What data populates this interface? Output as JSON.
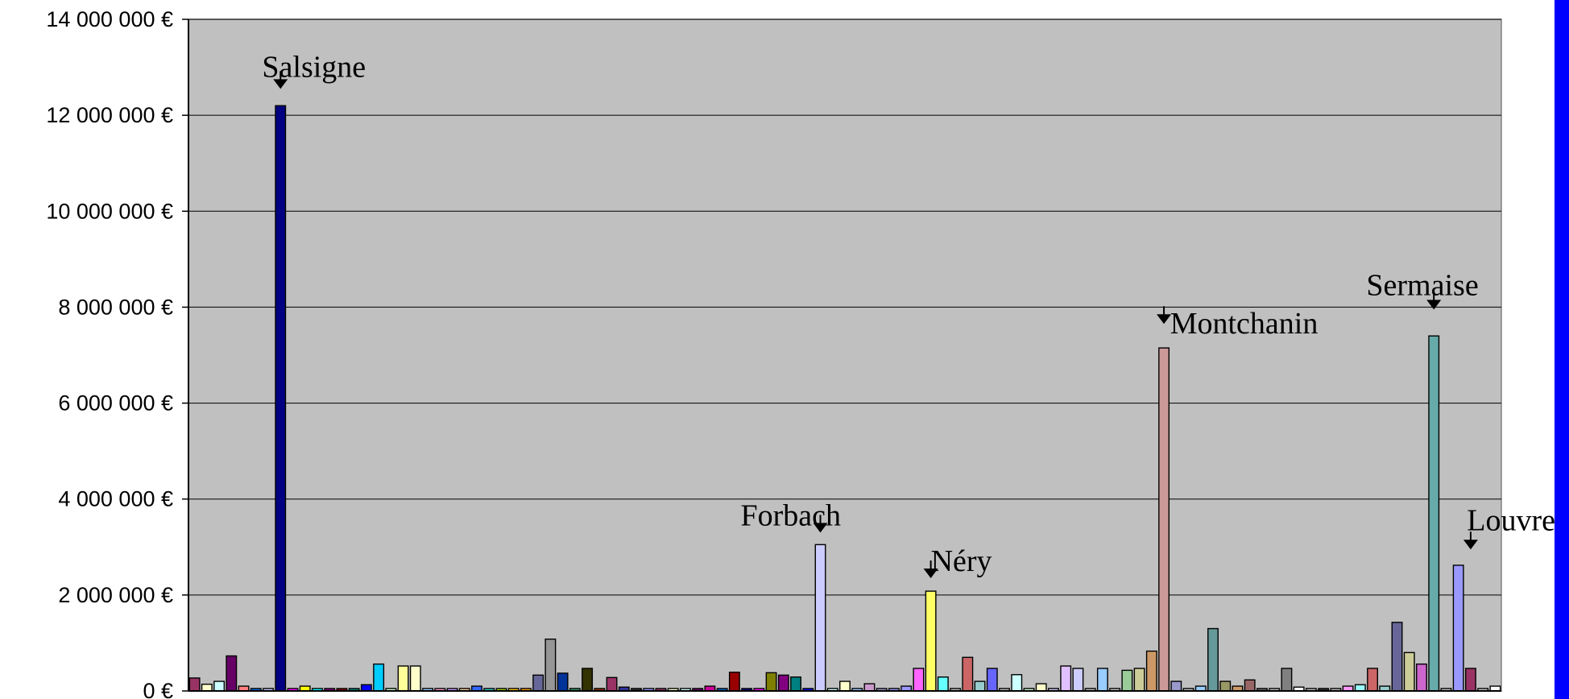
{
  "colors": {
    "page_background": "#ffffff",
    "plot_background": "#c0c0c0",
    "gridline": "#000000",
    "right_band": "#0000ff"
  },
  "chart_data": {
    "type": "bar",
    "title": "",
    "xlabel": "",
    "ylabel": "",
    "grid": true,
    "legend": "none",
    "ylim": [
      0,
      14000000
    ],
    "yticks": [
      0,
      2000000,
      4000000,
      6000000,
      8000000,
      10000000,
      12000000,
      14000000
    ],
    "ytick_labels": [
      "0 €",
      "2 000 000 €",
      "4 000 000 €",
      "6 000 000 €",
      "8 000 000 €",
      "10 000 000 €",
      "12 000 000 €",
      "14 000 000 €"
    ],
    "bars": [
      {
        "value": 270000,
        "color": "#993366"
      },
      {
        "value": 140000,
        "color": "#ffffcc"
      },
      {
        "value": 200000,
        "color": "#ccffff"
      },
      {
        "value": 730000,
        "color": "#660066"
      },
      {
        "value": 100000,
        "color": "#ff8080"
      },
      {
        "value": 50000,
        "color": "#0066cc"
      },
      {
        "value": 50000,
        "color": "#ccccff"
      },
      {
        "value": 12200000,
        "color": "#000080"
      },
      {
        "value": 0,
        "color": "#ff00ff"
      },
      {
        "value": 100000,
        "color": "#ffff00"
      },
      {
        "value": 50000,
        "color": "#00ffff"
      },
      {
        "value": 50000,
        "color": "#800080"
      },
      {
        "value": 0,
        "color": "#800000"
      },
      {
        "value": 50000,
        "color": "#008080"
      },
      {
        "value": 130000,
        "color": "#0000ff"
      },
      {
        "value": 560000,
        "color": "#00ccff"
      },
      {
        "value": 0,
        "color": "#ccffcc"
      },
      {
        "value": 520000,
        "color": "#ffff99"
      },
      {
        "value": 520000,
        "color": "#ffffcc"
      },
      {
        "value": 0,
        "color": "#99ccff"
      },
      {
        "value": 50000,
        "color": "#ff99cc"
      },
      {
        "value": 50000,
        "color": "#cc99ff"
      },
      {
        "value": 50000,
        "color": "#ffcc99"
      },
      {
        "value": 100000,
        "color": "#3366ff"
      },
      {
        "value": 0,
        "color": "#33cccc"
      },
      {
        "value": 50000,
        "color": "#99cc00"
      },
      {
        "value": 0,
        "color": "#ffcc00"
      },
      {
        "value": 50000,
        "color": "#ff9900"
      },
      {
        "value": 330000,
        "color": "#666699"
      },
      {
        "value": 1080000,
        "color": "#969696"
      },
      {
        "value": 370000,
        "color": "#003399"
      },
      {
        "value": 50000,
        "color": "#339966"
      },
      {
        "value": 470000,
        "color": "#333300"
      },
      {
        "value": 50000,
        "color": "#993300"
      },
      {
        "value": 280000,
        "color": "#993366"
      },
      {
        "value": 80000,
        "color": "#333399"
      },
      {
        "value": 50000,
        "color": "#333333"
      },
      {
        "value": 0,
        "color": "#9999ff"
      },
      {
        "value": 50000,
        "color": "#993366"
      },
      {
        "value": 50000,
        "color": "#ffffcc"
      },
      {
        "value": 0,
        "color": "#ccffff"
      },
      {
        "value": 50000,
        "color": "#660066"
      },
      {
        "value": 100000,
        "color": "#cc0099"
      },
      {
        "value": 50000,
        "color": "#0066cc"
      },
      {
        "value": 390000,
        "color": "#990000"
      },
      {
        "value": 0,
        "color": "#000080"
      },
      {
        "value": 50000,
        "color": "#ff00ff"
      },
      {
        "value": 380000,
        "color": "#808000"
      },
      {
        "value": 330000,
        "color": "#800080"
      },
      {
        "value": 290000,
        "color": "#008080"
      },
      {
        "value": 0,
        "color": "#0000ff"
      },
      {
        "value": 3050000,
        "color": "#ccccff"
      },
      {
        "value": 0,
        "color": "#ccffff"
      },
      {
        "value": 200000,
        "color": "#ffffcc"
      },
      {
        "value": 0,
        "color": "#99ccff"
      },
      {
        "value": 150000,
        "color": "#cc99cc"
      },
      {
        "value": 50000,
        "color": "#9999cc"
      },
      {
        "value": 50000,
        "color": "#9999ff"
      },
      {
        "value": 100000,
        "color": "#9999ff"
      },
      {
        "value": 470000,
        "color": "#ff66ff"
      },
      {
        "value": 2080000,
        "color": "#ffff66"
      },
      {
        "value": 290000,
        "color": "#66ffff"
      },
      {
        "value": 0,
        "color": "#c0c0c0"
      },
      {
        "value": 700000,
        "color": "#cc6666"
      },
      {
        "value": 200000,
        "color": "#99cccc"
      },
      {
        "value": 470000,
        "color": "#6666ff"
      },
      {
        "value": 0,
        "color": "#c0c0c0"
      },
      {
        "value": 340000,
        "color": "#ccffff"
      },
      {
        "value": 50000,
        "color": "#ccffcc"
      },
      {
        "value": 150000,
        "color": "#ffffcc"
      },
      {
        "value": 50000,
        "color": "#ccccff"
      },
      {
        "value": 520000,
        "color": "#e0c0ff"
      },
      {
        "value": 470000,
        "color": "#ccccff"
      },
      {
        "value": 0,
        "color": "#c0c0c0"
      },
      {
        "value": 470000,
        "color": "#99ccff"
      },
      {
        "value": 50000,
        "color": "#cccccc"
      },
      {
        "value": 430000,
        "color": "#99cc99"
      },
      {
        "value": 470000,
        "color": "#cccc99"
      },
      {
        "value": 830000,
        "color": "#cc9966"
      },
      {
        "value": 7150000,
        "color": "#cc9999"
      },
      {
        "value": 200000,
        "color": "#9999cc"
      },
      {
        "value": 0,
        "color": "#c0c0c0"
      },
      {
        "value": 100000,
        "color": "#99ccff"
      },
      {
        "value": 1300000,
        "color": "#669999"
      },
      {
        "value": 200000,
        "color": "#999966"
      },
      {
        "value": 100000,
        "color": "#cc9966"
      },
      {
        "value": 230000,
        "color": "#996666"
      },
      {
        "value": 50000,
        "color": "#666666"
      },
      {
        "value": 0,
        "color": "#c0c0c0"
      },
      {
        "value": 470000,
        "color": "#808080"
      },
      {
        "value": 80000,
        "color": "#ffffff"
      },
      {
        "value": 0,
        "color": "#c0c0c0"
      },
      {
        "value": 50000,
        "color": "#333333"
      },
      {
        "value": 0,
        "color": "#c0c0c0"
      },
      {
        "value": 100000,
        "color": "#ff99ff"
      },
      {
        "value": 130000,
        "color": "#99ffff"
      },
      {
        "value": 470000,
        "color": "#cc6666"
      },
      {
        "value": 100000,
        "color": "#99cccc"
      },
      {
        "value": 1430000,
        "color": "#666699"
      },
      {
        "value": 800000,
        "color": "#cccc99"
      },
      {
        "value": 560000,
        "color": "#cc66cc"
      },
      {
        "value": 7400000,
        "color": "#66aaaa"
      },
      {
        "value": 0,
        "color": "#c0c0c0"
      },
      {
        "value": 2620000,
        "color": "#9999ff"
      },
      {
        "value": 470000,
        "color": "#993366"
      },
      {
        "value": 50000,
        "color": "#cccccc"
      },
      {
        "value": 100000,
        "color": "#ffffff"
      }
    ],
    "annotations": [
      {
        "label": "Salsigne",
        "bar_index": 7,
        "arrow_value": 12550000,
        "label_value": 12800000,
        "label_offset_bars": -1.5
      },
      {
        "label": "Forbach",
        "bar_index": 51,
        "arrow_value": 3300000,
        "label_value": 3450000,
        "label_offset_bars": -6.5
      },
      {
        "label": "Néry",
        "bar_index": 60,
        "arrow_value": 2350000,
        "label_value": 2500000,
        "label_offset_bars": 0
      },
      {
        "label": "Montchanin",
        "bar_index": 79,
        "arrow_value": 7650000,
        "label_value": 7450000,
        "label_offset_bars": 0.5
      },
      {
        "label": "Sermaise",
        "bar_index": 101,
        "arrow_value": 7950000,
        "label_value": 8250000,
        "label_offset_bars": -5.5
      },
      {
        "label": "Louvres",
        "bar_index": 104,
        "arrow_value": 2950000,
        "label_value": 3350000,
        "label_offset_bars": -0.3
      }
    ]
  }
}
